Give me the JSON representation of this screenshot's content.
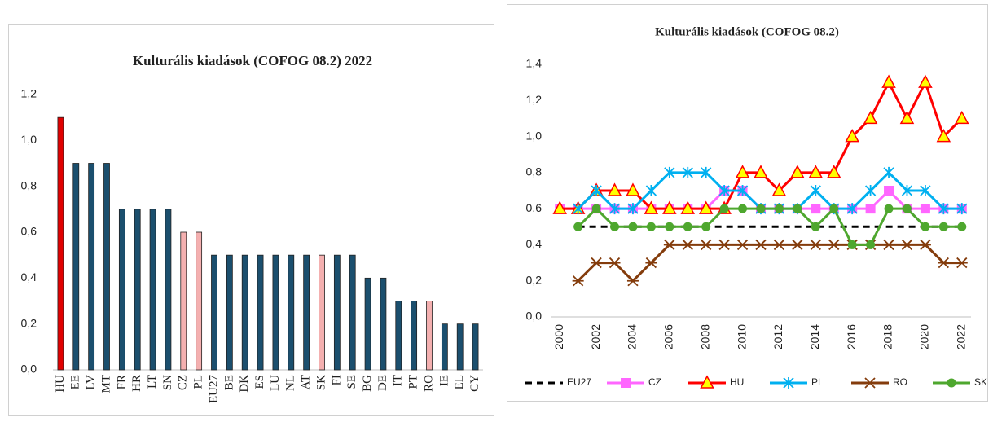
{
  "chart_data": [
    {
      "type": "bar",
      "title": "Kulturális kiadások (COFOG 08.2) 2022",
      "categories": [
        "HU",
        "EE",
        "LV",
        "MT",
        "FR",
        "HR",
        "LT",
        "SN",
        "CZ",
        "PL",
        "EU27",
        "BE",
        "DK",
        "ES",
        "LU",
        "NL",
        "AT",
        "SK",
        "FI",
        "SE",
        "BG",
        "DE",
        "IT",
        "PT",
        "RO",
        "IE",
        "EL",
        "CY"
      ],
      "values": [
        1.1,
        0.9,
        0.9,
        0.9,
        0.7,
        0.7,
        0.7,
        0.7,
        0.6,
        0.6,
        0.5,
        0.5,
        0.5,
        0.5,
        0.5,
        0.5,
        0.5,
        0.5,
        0.5,
        0.5,
        0.4,
        0.4,
        0.3,
        0.3,
        0.3,
        0.2,
        0.2,
        0.2
      ],
      "colors": [
        "#e00000",
        "#1b4f6e",
        "#1b4f6e",
        "#1b4f6e",
        "#1b4f6e",
        "#1b4f6e",
        "#1b4f6e",
        "#1b4f6e",
        "#f4b0b0",
        "#f4b0b0",
        "#1b4f6e",
        "#1b4f6e",
        "#1b4f6e",
        "#1b4f6e",
        "#1b4f6e",
        "#1b4f6e",
        "#1b4f6e",
        "#f4b0b0",
        "#1b4f6e",
        "#1b4f6e",
        "#1b4f6e",
        "#1b4f6e",
        "#1b4f6e",
        "#1b4f6e",
        "#f4b0b0",
        "#1b4f6e",
        "#1b4f6e",
        "#1b4f6e"
      ],
      "ylim": [
        0,
        1.2
      ],
      "yticks": [
        {
          "value": 0,
          "label": "0,0"
        },
        {
          "value": 0.2,
          "label": "0,2"
        },
        {
          "value": 0.4,
          "label": "0,4"
        },
        {
          "value": 0.6,
          "label": "0,6"
        },
        {
          "value": 0.8,
          "label": "0,8"
        },
        {
          "value": 1.0,
          "label": "1,0"
        },
        {
          "value": 1.2,
          "label": "1,2"
        }
      ]
    },
    {
      "type": "line",
      "title": "Kulturális kiadások (COFOG 08.2)",
      "x": [
        2000,
        2001,
        2002,
        2003,
        2004,
        2005,
        2006,
        2007,
        2008,
        2009,
        2010,
        2011,
        2012,
        2013,
        2014,
        2015,
        2016,
        2017,
        2018,
        2019,
        2020,
        2021,
        2022
      ],
      "xlim": [
        1999.5,
        2022.5
      ],
      "xticks": [
        2000,
        2002,
        2004,
        2006,
        2008,
        2010,
        2012,
        2014,
        2016,
        2018,
        2020,
        2022
      ],
      "ylim": [
        0,
        1.4
      ],
      "yticks": [
        {
          "value": 0,
          "label": "0,0"
        },
        {
          "value": 0.2,
          "label": "0,2"
        },
        {
          "value": 0.4,
          "label": "0,4"
        },
        {
          "value": 0.6,
          "label": "0,6"
        },
        {
          "value": 0.8,
          "label": "0,8"
        },
        {
          "value": 1.0,
          "label": "1,0"
        },
        {
          "value": 1.2,
          "label": "1,2"
        },
        {
          "value": 1.4,
          "label": "1,4"
        }
      ],
      "legend": "bottom",
      "series": [
        {
          "name": "EU27",
          "color": "#000000",
          "dashed": true,
          "marker": "none",
          "values": [
            null,
            0.5,
            0.5,
            0.5,
            0.5,
            0.5,
            0.5,
            0.5,
            0.5,
            0.5,
            0.5,
            0.5,
            0.5,
            0.5,
            0.5,
            0.5,
            0.5,
            0.5,
            0.5,
            0.5,
            0.5,
            0.5,
            0.5
          ]
        },
        {
          "name": "CZ",
          "color": "#ff66ff",
          "marker": "square",
          "values": [
            0.6,
            0.6,
            0.6,
            0.6,
            0.6,
            0.6,
            0.6,
            0.6,
            0.6,
            0.7,
            0.7,
            0.6,
            0.6,
            0.6,
            0.6,
            0.6,
            0.6,
            0.6,
            0.7,
            0.6,
            0.6,
            0.6,
            0.6
          ]
        },
        {
          "name": "HU",
          "color": "#ff0000",
          "marker": "triangle",
          "marker_fill": "#ffff00",
          "values": [
            0.6,
            0.6,
            0.7,
            0.7,
            0.7,
            0.6,
            0.6,
            0.6,
            0.6,
            0.6,
            0.8,
            0.8,
            0.7,
            0.8,
            0.8,
            0.8,
            1.0,
            1.1,
            1.3,
            1.1,
            1.3,
            1.0,
            1.1
          ]
        },
        {
          "name": "PL",
          "color": "#00b0f0",
          "marker": "asterisk",
          "values": [
            null,
            0.6,
            0.7,
            0.6,
            0.6,
            0.7,
            0.8,
            0.8,
            0.8,
            0.7,
            0.7,
            0.6,
            0.6,
            0.6,
            0.7,
            0.6,
            0.6,
            0.7,
            0.8,
            0.7,
            0.7,
            0.6,
            0.6
          ]
        },
        {
          "name": "RO",
          "color": "#843c0c",
          "marker": "star",
          "values": [
            null,
            0.2,
            0.3,
            0.3,
            0.2,
            0.3,
            0.4,
            0.4,
            0.4,
            0.4,
            0.4,
            0.4,
            0.4,
            0.4,
            0.4,
            0.4,
            0.4,
            0.4,
            0.4,
            0.4,
            0.4,
            0.3,
            0.3
          ]
        },
        {
          "name": "SK",
          "color": "#4ea72e",
          "marker": "circle",
          "values": [
            null,
            0.5,
            0.6,
            0.5,
            0.5,
            0.5,
            0.5,
            0.5,
            0.5,
            0.6,
            0.6,
            0.6,
            0.6,
            0.6,
            0.5,
            0.6,
            0.4,
            0.4,
            0.6,
            0.6,
            0.5,
            0.5,
            0.5
          ]
        }
      ]
    }
  ]
}
